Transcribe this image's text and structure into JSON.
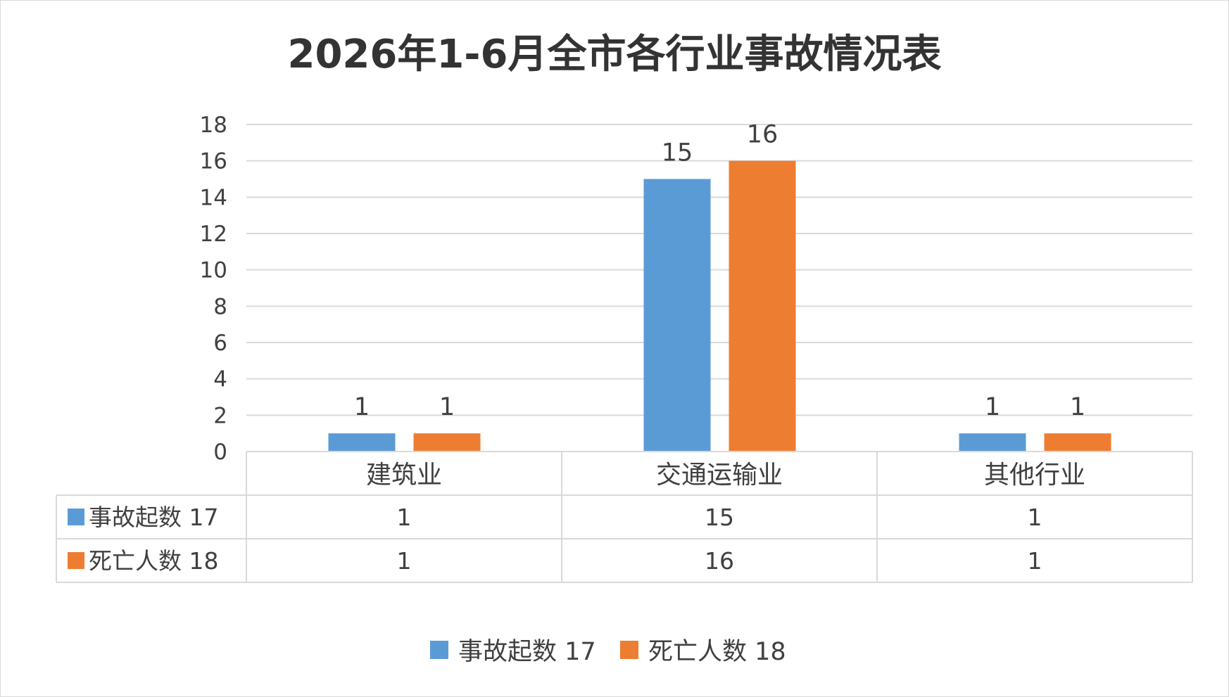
{
  "chart_data": {
    "type": "bar",
    "title": "2026年1-6月全市各行业事故情况表",
    "categories": [
      "建筑业",
      "交通运输业",
      "其他行业"
    ],
    "series": [
      {
        "name": "事故起数 17",
        "color": "#5b9bd5",
        "values": [
          1,
          15,
          1
        ]
      },
      {
        "name": "死亡人数 18",
        "color": "#ed7d31",
        "values": [
          1,
          16,
          1
        ]
      }
    ],
    "ylim": [
      0,
      18
    ],
    "yticks": [
      "0",
      "2",
      "4",
      "6",
      "8",
      "10",
      "12",
      "14",
      "16",
      "18"
    ],
    "grid": true,
    "data_table": true,
    "legend_position": "bottom",
    "xlabel": "",
    "ylabel": ""
  }
}
